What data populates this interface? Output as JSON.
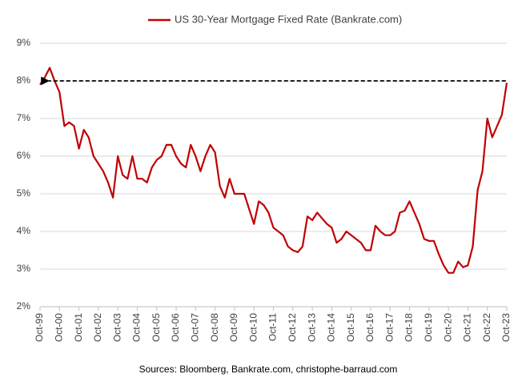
{
  "chart_data": {
    "type": "line",
    "legend_label": "US 30-Year Mortgage Fixed Rate (Bankrate.com)",
    "source": "Sources: Bloomberg, Bankrate.com, christophe-barraud.com",
    "x": [
      1999.75,
      2000,
      2000.25,
      2000.5,
      2000.75,
      2001,
      2001.25,
      2001.5,
      2001.75,
      2002,
      2002.25,
      2002.5,
      2002.75,
      2003,
      2003.25,
      2003.5,
      2003.75,
      2004,
      2004.25,
      2004.5,
      2004.75,
      2005,
      2005.25,
      2005.5,
      2005.75,
      2006,
      2006.25,
      2006.5,
      2006.75,
      2007,
      2007.25,
      2007.5,
      2007.75,
      2008,
      2008.25,
      2008.5,
      2008.75,
      2009,
      2009.25,
      2009.5,
      2009.75,
      2010,
      2010.25,
      2010.5,
      2010.75,
      2011,
      2011.25,
      2011.5,
      2011.75,
      2012,
      2012.25,
      2012.5,
      2012.75,
      2013,
      2013.25,
      2013.5,
      2013.75,
      2014,
      2014.25,
      2014.5,
      2014.75,
      2015,
      2015.25,
      2015.5,
      2015.75,
      2016,
      2016.25,
      2016.5,
      2016.75,
      2017,
      2017.25,
      2017.5,
      2017.75,
      2018,
      2018.25,
      2018.5,
      2018.75,
      2019,
      2019.25,
      2019.5,
      2019.75,
      2020,
      2020.25,
      2020.5,
      2020.75,
      2021,
      2021.25,
      2021.5,
      2021.75,
      2022,
      2022.25,
      2022.5,
      2022.75,
      2023,
      2023.25,
      2023.5,
      2023.75
    ],
    "series": [
      {
        "name": "US 30-Year Mortgage Fixed Rate (Bankrate.com)",
        "color": "#c00000",
        "values": [
          7.9,
          8.1,
          8.35,
          8.0,
          7.7,
          6.8,
          6.9,
          6.8,
          6.2,
          6.7,
          6.5,
          6.0,
          5.8,
          5.6,
          5.3,
          4.9,
          6.0,
          5.5,
          5.4,
          6.0,
          5.4,
          5.4,
          5.3,
          5.7,
          5.9,
          6.0,
          6.3,
          6.3,
          6.0,
          5.8,
          5.7,
          6.3,
          6.0,
          5.6,
          6.0,
          6.3,
          6.1,
          5.2,
          4.9,
          5.4,
          5.0,
          5.0,
          5.0,
          4.6,
          4.2,
          4.8,
          4.7,
          4.5,
          4.1,
          4.0,
          3.9,
          3.6,
          3.5,
          3.45,
          3.6,
          4.4,
          4.3,
          4.5,
          4.35,
          4.2,
          4.1,
          3.7,
          3.8,
          4.0,
          3.9,
          3.8,
          3.7,
          3.5,
          3.5,
          4.15,
          4.0,
          3.9,
          3.9,
          4.0,
          4.5,
          4.55,
          4.8,
          4.5,
          4.2,
          3.8,
          3.75,
          3.75,
          3.4,
          3.1,
          2.9,
          2.9,
          3.2,
          3.05,
          3.1,
          3.6,
          5.1,
          5.6,
          7.0,
          6.5,
          6.8,
          7.1,
          7.95
        ]
      }
    ],
    "annotation": {
      "x": [
        2023.7,
        2000.2
      ],
      "y": 8
    },
    "xlim": [
      1999.75,
      2023.75
    ],
    "xticks": [
      {
        "value": 1999.75,
        "label": "Oct-99"
      },
      {
        "value": 2000.75,
        "label": "Oct-00"
      },
      {
        "value": 2001.75,
        "label": "Oct-01"
      },
      {
        "value": 2002.75,
        "label": "Oct-02"
      },
      {
        "value": 2003.75,
        "label": "Oct-03"
      },
      {
        "value": 2004.75,
        "label": "Oct-04"
      },
      {
        "value": 2005.75,
        "label": "Oct-05"
      },
      {
        "value": 2006.75,
        "label": "Oct-06"
      },
      {
        "value": 2007.75,
        "label": "Oct-07"
      },
      {
        "value": 2008.75,
        "label": "Oct-08"
      },
      {
        "value": 2009.75,
        "label": "Oct-09"
      },
      {
        "value": 2010.75,
        "label": "Oct-10"
      },
      {
        "value": 2011.75,
        "label": "Oct-11"
      },
      {
        "value": 2012.75,
        "label": "Oct-12"
      },
      {
        "value": 2013.75,
        "label": "Oct-13"
      },
      {
        "value": 2014.75,
        "label": "Oct-14"
      },
      {
        "value": 2015.75,
        "label": "Oct-15"
      },
      {
        "value": 2016.75,
        "label": "Oct-16"
      },
      {
        "value": 2017.75,
        "label": "Oct-17"
      },
      {
        "value": 2018.75,
        "label": "Oct-18"
      },
      {
        "value": 2019.75,
        "label": "Oct-19"
      },
      {
        "value": 2020.75,
        "label": "Oct-20"
      },
      {
        "value": 2021.75,
        "label": "Oct-21"
      },
      {
        "value": 2022.75,
        "label": "Oct-22"
      },
      {
        "value": 2023.75,
        "label": "Oct-23"
      }
    ],
    "ylim": [
      2,
      9
    ],
    "yticks": [
      {
        "value": 2,
        "label": "2%"
      },
      {
        "value": 3,
        "label": "3%"
      },
      {
        "value": 4,
        "label": "4%"
      },
      {
        "value": 5,
        "label": "5%"
      },
      {
        "value": 6,
        "label": "6%"
      },
      {
        "value": 7,
        "label": "7%"
      },
      {
        "value": 8,
        "label": "8%"
      },
      {
        "value": 9,
        "label": "9%"
      }
    ],
    "grid": true
  }
}
